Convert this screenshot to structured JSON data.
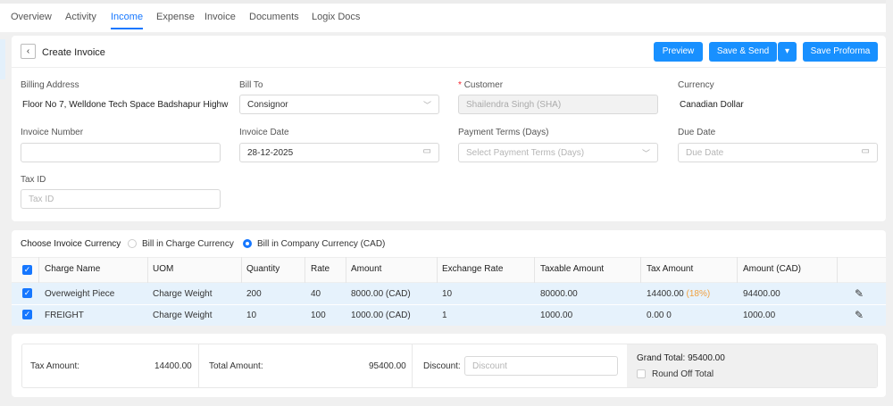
{
  "tabs": [
    "Overview",
    "Activity",
    "Income",
    "Expense",
    "Invoice",
    "Documents",
    "Logix Docs"
  ],
  "active_tab": "Income",
  "header": {
    "back_icon": "chevron-left-icon",
    "title": "Create Invoice",
    "preview": "Preview",
    "save_send": "Save & Send",
    "save_proforma": "Save Proforma"
  },
  "form": {
    "billing_address": {
      "label": "Billing Address",
      "value": "Floor No 7, Welldone Tech Space Badshapur Highw"
    },
    "bill_to": {
      "label": "Bill To",
      "value": "Consignor"
    },
    "customer": {
      "label": "Customer",
      "required_mark": "*",
      "value": "Shailendra Singh (SHA)"
    },
    "currency": {
      "label": "Currency",
      "value": "Canadian Dollar"
    },
    "invoice_number": {
      "label": "Invoice Number",
      "value": ""
    },
    "invoice_date": {
      "label": "Invoice Date",
      "value": "28-12-2025"
    },
    "payment_terms": {
      "label": "Payment Terms (Days)",
      "placeholder": "Select Payment Terms (Days)"
    },
    "due_date": {
      "label": "Due Date",
      "placeholder": "Due Date"
    },
    "tax_id": {
      "label": "Tax ID",
      "placeholder": "Tax ID"
    }
  },
  "currency_choice": {
    "label": "Choose Invoice Currency",
    "options": [
      "Bill in Charge Currency",
      "Bill in Company Currency (CAD)"
    ],
    "selected": "Bill in Company Currency (CAD)"
  },
  "table": {
    "headers": [
      "Charge Name",
      "UOM",
      "Quantity",
      "Rate",
      "Amount",
      "Exchange Rate",
      "Taxable Amount",
      "Tax Amount",
      "Amount (CAD)"
    ],
    "rows": [
      {
        "charge": "Overweight Piece",
        "uom": "Charge Weight",
        "qty": "200",
        "rate": "40",
        "amount": "8000.00 (CAD)",
        "exch": "10",
        "taxable": "80000.00",
        "tax": "14400.00",
        "tax_pct": "(18%)",
        "amount_cad": "94400.00"
      },
      {
        "charge": "FREIGHT",
        "uom": "Charge Weight",
        "qty": "10",
        "rate": "100",
        "amount": "1000.00 (CAD)",
        "exch": "1",
        "taxable": "1000.00",
        "tax": "0.00 0",
        "tax_pct": "",
        "amount_cad": "1000.00"
      }
    ]
  },
  "summary": {
    "tax_label": "Tax Amount:",
    "tax_value": "14400.00",
    "total_label": "Total Amount:",
    "total_value": "95400.00",
    "discount_label": "Discount:",
    "discount_placeholder": "Discount",
    "grand_total": "Grand Total: 95400.00",
    "round_off": "Round Off Total"
  },
  "colors": {
    "accent": "#1677ff",
    "row_bg": "#e6f2fc",
    "tax_pct": "#f0a040"
  }
}
